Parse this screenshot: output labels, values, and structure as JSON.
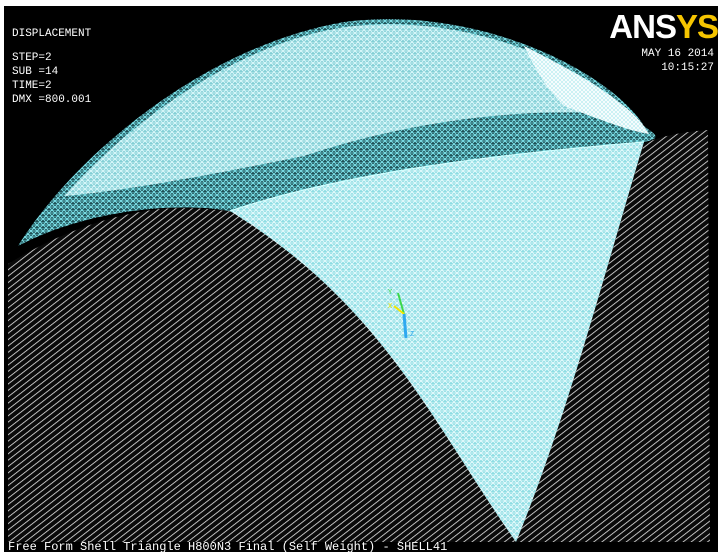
{
  "info": {
    "title": "DISPLACEMENT",
    "step": "STEP=2",
    "sub": "SUB =14",
    "time": "TIME=2",
    "dmx": "DMX =800.001"
  },
  "logo": {
    "text_a": "ANS",
    "text_b": "YS"
  },
  "timestamp": {
    "date": "MAY 16 2014",
    "time": "10:15:27"
  },
  "caption": "Free Form Shell Triangle H800N3 Final (Self Weight) - SHELL41",
  "colors": {
    "background": "#000000",
    "deformed_mesh": "#5fd8e0",
    "undeformed_mesh": "#ffffff",
    "logo_accent": "#f6c500",
    "triad_x": "#f2e600",
    "triad_y": "#3cd84a",
    "triad_z": "#2fa8f0"
  },
  "triad": {
    "label_y": "Y",
    "label_z": "Z",
    "label_x": "X"
  }
}
